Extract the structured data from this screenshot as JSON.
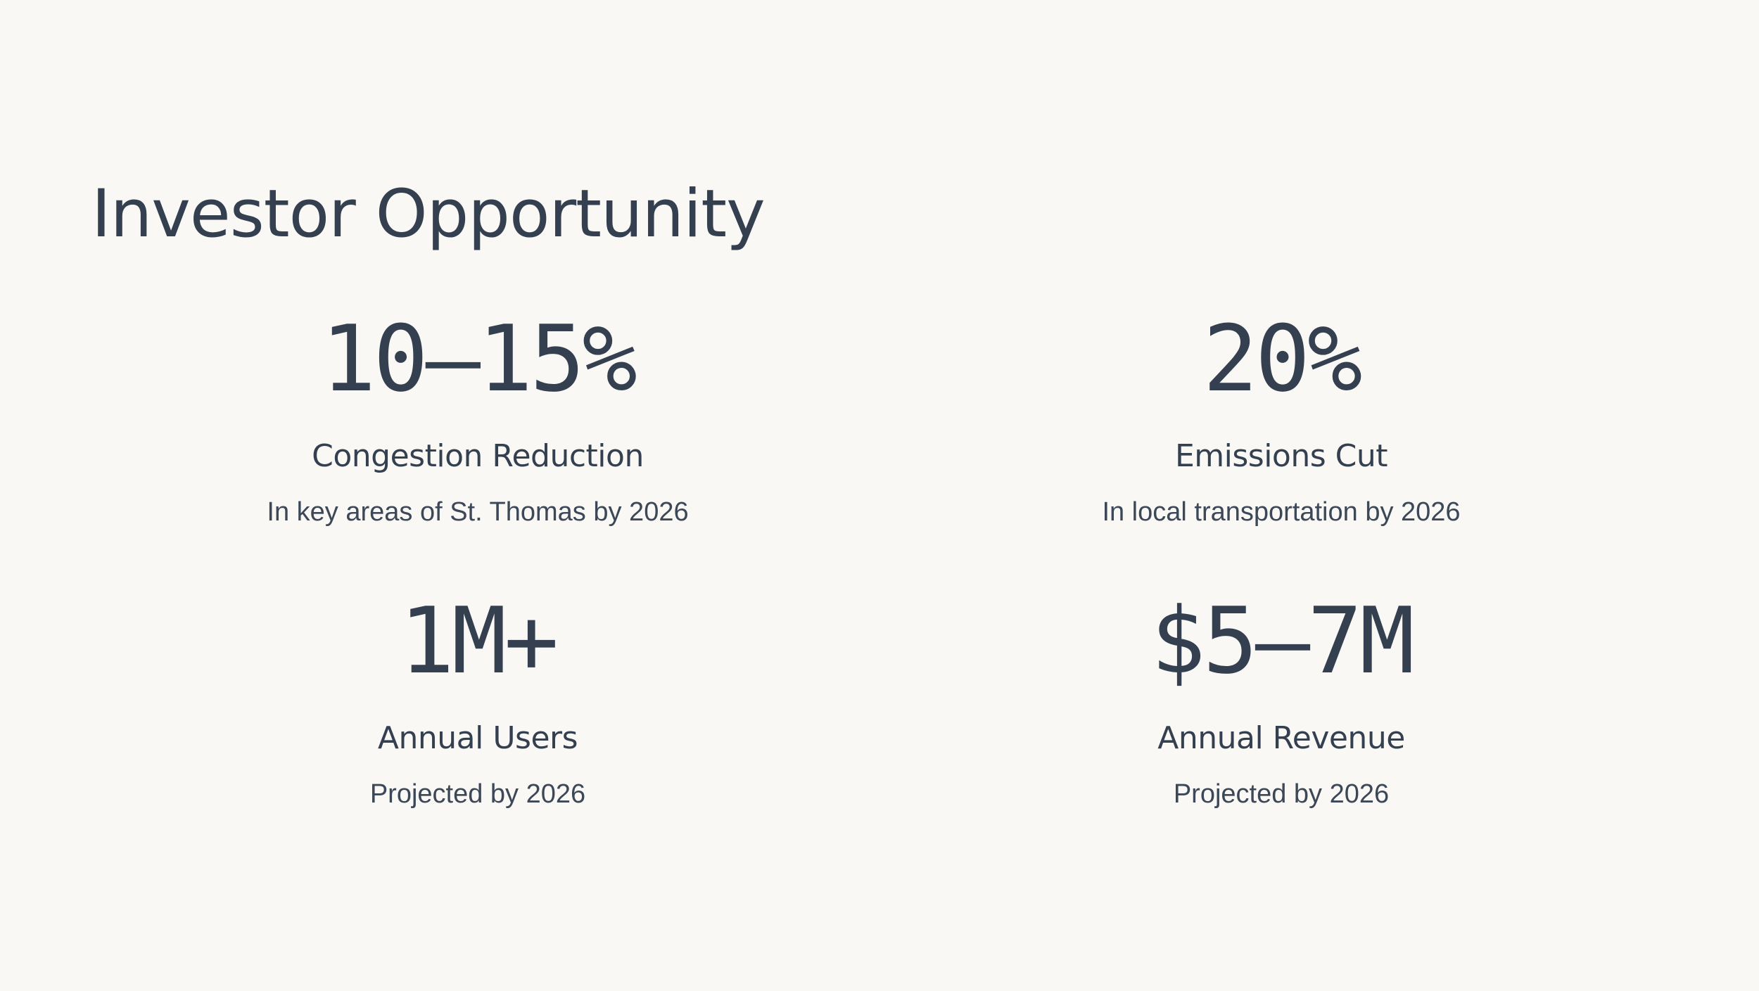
{
  "title": "Investor Opportunity",
  "stats": [
    {
      "value": "10–15%",
      "label": "Congestion Reduction",
      "description": "In key areas of St. Thomas by 2026"
    },
    {
      "value": "20%",
      "label": "Emissions Cut",
      "description": "In local transportation by 2026"
    },
    {
      "value": "1M+",
      "label": "Annual Users",
      "description": "Projected by 2026"
    },
    {
      "value": "$5–7M",
      "label": "Annual Revenue",
      "description": "Projected by 2026"
    }
  ],
  "colors": {
    "background": "#f9f8f5",
    "text": "#344050"
  }
}
